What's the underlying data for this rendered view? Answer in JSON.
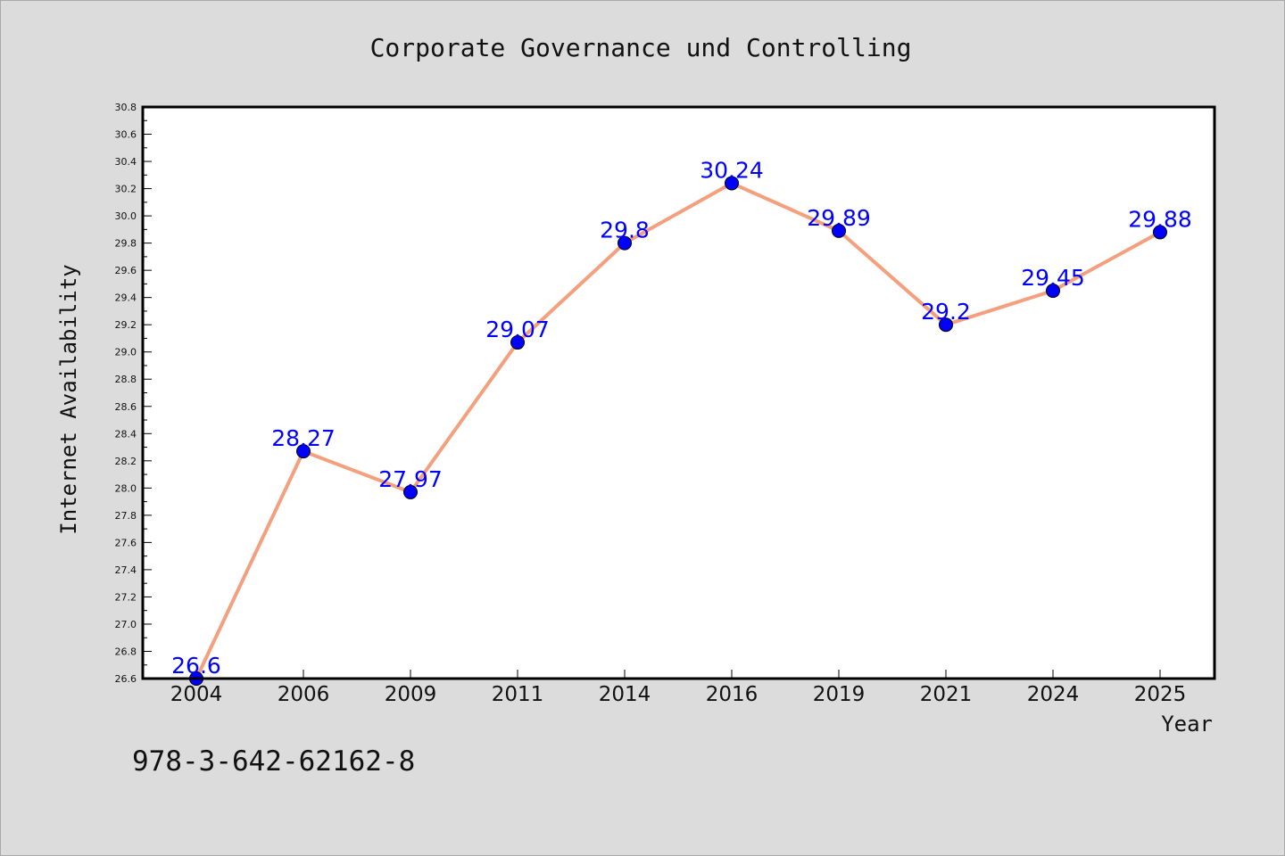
{
  "chart_data": {
    "type": "line",
    "title": "Corporate Governance und Controlling",
    "xlabel": "Year",
    "ylabel": "Internet Availability",
    "categories": [
      "2004",
      "2006",
      "2009",
      "2011",
      "2014",
      "2016",
      "2019",
      "2021",
      "2024",
      "2025"
    ],
    "series": [
      {
        "values": [
          26.6,
          28.27,
          27.97,
          29.07,
          29.8,
          30.24,
          29.89,
          29.2,
          29.45,
          29.88
        ],
        "labels": [
          "26.6",
          "28.27",
          "27.97",
          "29.07",
          "29.8",
          "30.24",
          "29.89",
          "29.2",
          "29.45",
          "29.88"
        ]
      }
    ],
    "ylim": [
      26.6,
      30.8
    ],
    "yticks": [
      "26.6",
      "26.8",
      "27.0",
      "27.2",
      "27.4",
      "27.6",
      "27.8",
      "28.0",
      "28.2",
      "28.4",
      "28.6",
      "28.8",
      "29.0",
      "29.2",
      "29.4",
      "29.6",
      "29.8",
      "30.0",
      "30.2",
      "30.4",
      "30.6",
      "30.8"
    ],
    "grid": false,
    "line_color": "#f4a07e",
    "marker_color": "#0000ff",
    "label_color": "#0000ff",
    "plot_background": "#ffffff",
    "figure_background": "#dcdcdc"
  },
  "footer": {
    "text": "978-3-642-62162-8"
  }
}
